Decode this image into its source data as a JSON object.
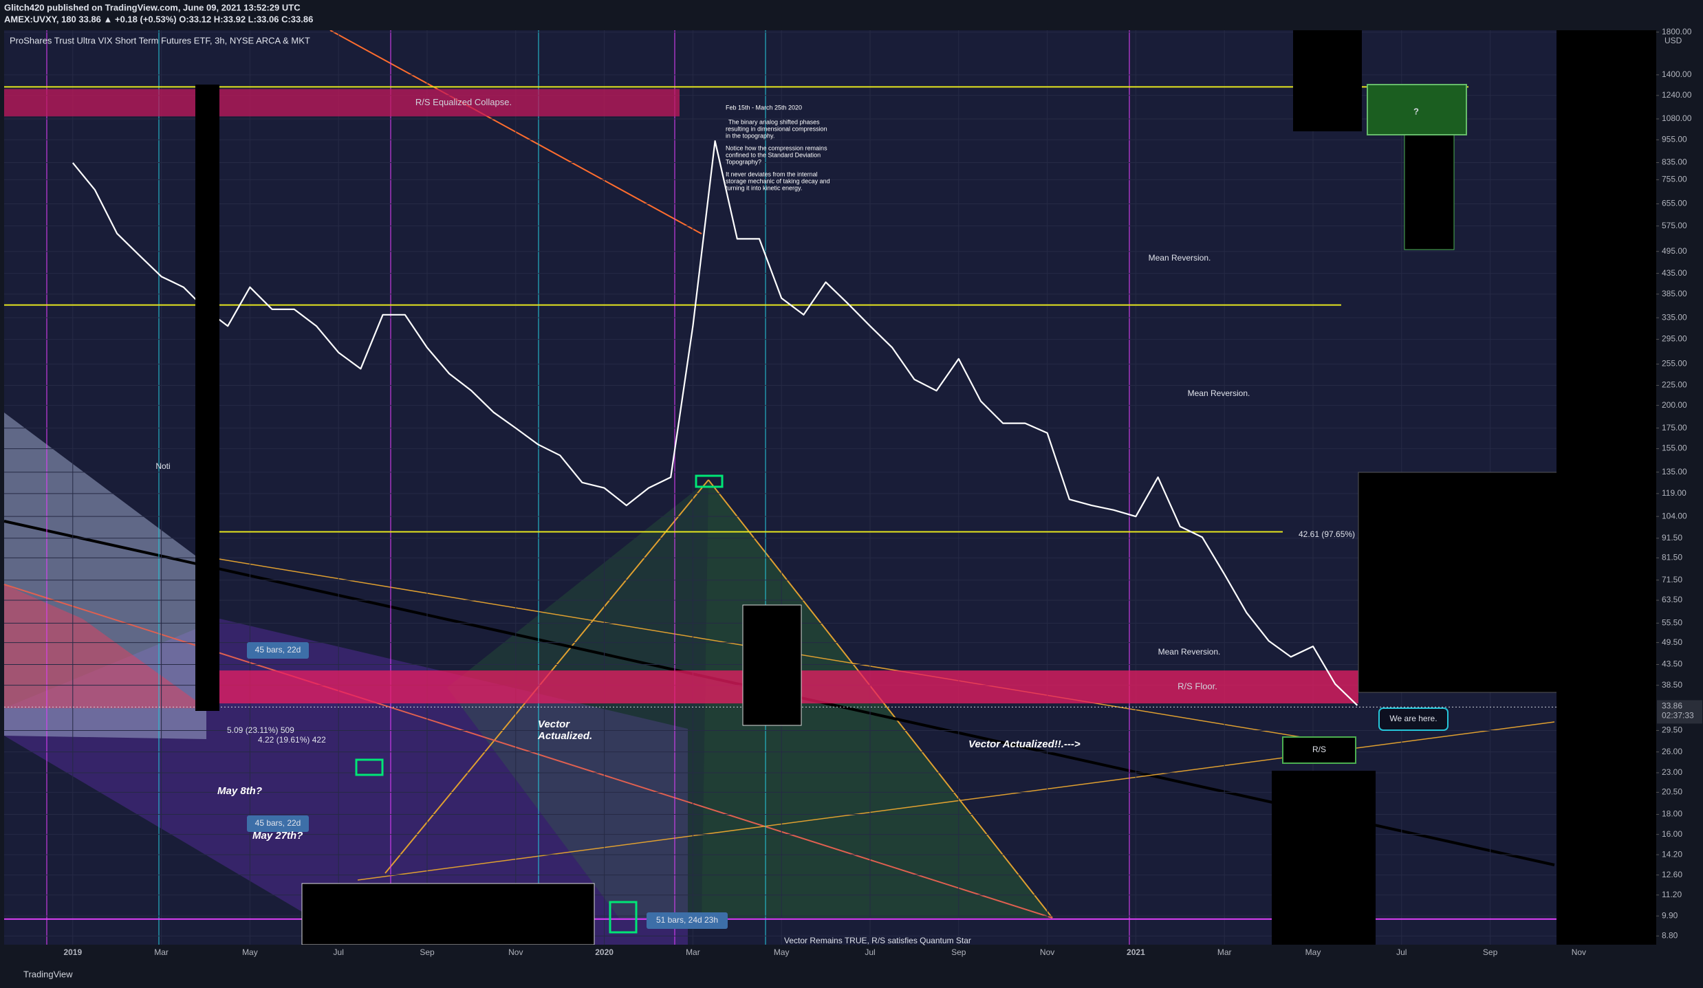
{
  "chart_data": {
    "type": "line",
    "publisher": "Glitch420 published on TradingView.com, June 09, 2021 13:52:29 UTC",
    "symbol_line": "AMEX:UVXY, 180  33.86 ▲ +0.18 (+0.53%) O:33.12 H:33.92 L:33.06 C:33.86",
    "title": "ProShares Trust Ultra VIX Short Term Futures ETF, 3h, NYSE ARCA & MKT",
    "currency": "USD",
    "brand": "TradingView",
    "log_scale": true,
    "grid": true,
    "color": "#ffffff",
    "categories": [
      "2019",
      null,
      null,
      null,
      "Mar",
      null,
      null,
      null,
      "May",
      null,
      null,
      null,
      "Jul",
      null,
      null,
      null,
      "Sep",
      null,
      null,
      null,
      "Nov",
      null,
      null,
      null,
      "2020",
      null,
      null,
      null,
      "Mar",
      null,
      null,
      null,
      "May",
      null,
      null,
      null,
      "Jul",
      null,
      null,
      null,
      "Sep",
      null,
      null,
      null,
      "Nov",
      null,
      null,
      null,
      "2021",
      null,
      null,
      null,
      "Mar",
      null,
      null,
      null,
      "May",
      null,
      null,
      null,
      "Jul",
      null,
      null,
      null,
      "Sep",
      null,
      null,
      null,
      "Nov",
      null,
      null,
      null
    ],
    "values": [
      834,
      711,
      550,
      484,
      427,
      401,
      352,
      319,
      401,
      352,
      352,
      319,
      273,
      248,
      341,
      341,
      281,
      241,
      218,
      192,
      175,
      159,
      149,
      127,
      123,
      111,
      123,
      131,
      319,
      948,
      533,
      533,
      376,
      341,
      413,
      364,
      319,
      281,
      233,
      218,
      263,
      205,
      180,
      180,
      170,
      115,
      111,
      108,
      104,
      131,
      98,
      92,
      74,
      59,
      50,
      45.5,
      48.4,
      38.8,
      34.2,
      null,
      null,
      null,
      null,
      null,
      null,
      null,
      null,
      null,
      null,
      null,
      null,
      null
    ],
    "ylim": [
      8.36,
      1820
    ],
    "yticks": [
      {
        "value": 1800,
        "label": "1800.00"
      },
      {
        "value": 1400,
        "label": "1400.00"
      },
      {
        "value": 1240,
        "label": "1240.00"
      },
      {
        "value": 1080,
        "label": "1080.00"
      },
      {
        "value": 955,
        "label": "955.00"
      },
      {
        "value": 835,
        "label": "835.00"
      },
      {
        "value": 755,
        "label": "755.00"
      },
      {
        "value": 655,
        "label": "655.00"
      },
      {
        "value": 575,
        "label": "575.00"
      },
      {
        "value": 495,
        "label": "495.00"
      },
      {
        "value": 435,
        "label": "435.00"
      },
      {
        "value": 385,
        "label": "385.00"
      },
      {
        "value": 335,
        "label": "335.00"
      },
      {
        "value": 295,
        "label": "295.00"
      },
      {
        "value": 255,
        "label": "255.00"
      },
      {
        "value": 225,
        "label": "225.00"
      },
      {
        "value": 200,
        "label": "200.00"
      },
      {
        "value": 175,
        "label": "175.00"
      },
      {
        "value": 155,
        "label": "155.00"
      },
      {
        "value": 135,
        "label": "135.00"
      },
      {
        "value": 119,
        "label": "119.00"
      },
      {
        "value": 104,
        "label": "104.00"
      },
      {
        "value": 91.5,
        "label": "91.50"
      },
      {
        "value": 81.5,
        "label": "81.50"
      },
      {
        "value": 71.5,
        "label": "71.50"
      },
      {
        "value": 63.5,
        "label": "63.50"
      },
      {
        "value": 55.5,
        "label": "55.50"
      },
      {
        "value": 49.5,
        "label": "49.50"
      },
      {
        "value": 43.5,
        "label": "43.50"
      },
      {
        "value": 38.5,
        "label": "38.50"
      },
      {
        "value": 29.5,
        "label": "29.50"
      },
      {
        "value": 26,
        "label": "26.00"
      },
      {
        "value": 23,
        "label": "23.00"
      },
      {
        "value": 20.5,
        "label": "20.50"
      },
      {
        "value": 18,
        "label": "18.00"
      },
      {
        "value": 16,
        "label": "16.00"
      },
      {
        "value": 14.2,
        "label": "14.20"
      },
      {
        "value": 12.6,
        "label": "12.60"
      },
      {
        "value": 11.2,
        "label": "11.20"
      },
      {
        "value": 9.9,
        "label": "9.90"
      },
      {
        "value": 8.8,
        "label": "8.80"
      }
    ],
    "last_price": 33.86,
    "countdown": "02:37:33",
    "levels": [
      {
        "value": 1304,
        "color": "#e6e61e"
      },
      {
        "value": 361,
        "color": "#e6e61e"
      },
      {
        "value": 95,
        "color": "#e6e61e"
      },
      {
        "value": 9.72,
        "color": "#e040fb"
      }
    ],
    "zones": [
      {
        "label": "R/S Equalized Collapse.",
        "top": 1288,
        "bottom": 1096,
        "color": "#c2185b"
      },
      {
        "label": "R/S Floor.",
        "top": 42,
        "bottom": 34.6,
        "color": "#e91e63"
      }
    ],
    "notes": [
      "Feb 15th - March 25th 2020",
      "The binary analog shifted phases",
      "resulting in dimensional compression",
      "in the topography.",
      "Notice how the compression remains",
      "confined to the Standard Deviation",
      "Topography?",
      "It never deviates from the internal",
      "storage mechanic of taking decay and",
      "turning it into kinetic energy."
    ],
    "annotations": [
      "Mean Reversion.",
      "Mean Reversion.",
      "Mean Reversion.",
      "We are here.",
      "R/S",
      "Vector",
      "Actualized.",
      "Vector Actualized!!.--->",
      "45 bars, 22d",
      "45 bars, 22d",
      "51 bars, 24d 23h",
      "May 8th?",
      "May 27th?",
      "Noti",
      "?",
      "42.61 (97.65%)",
      "5.09 (23.11%) 509",
      "4.22 (19.61%) 422",
      "Vector Remains TRUE, R/S satisfies Quantum Star"
    ]
  }
}
